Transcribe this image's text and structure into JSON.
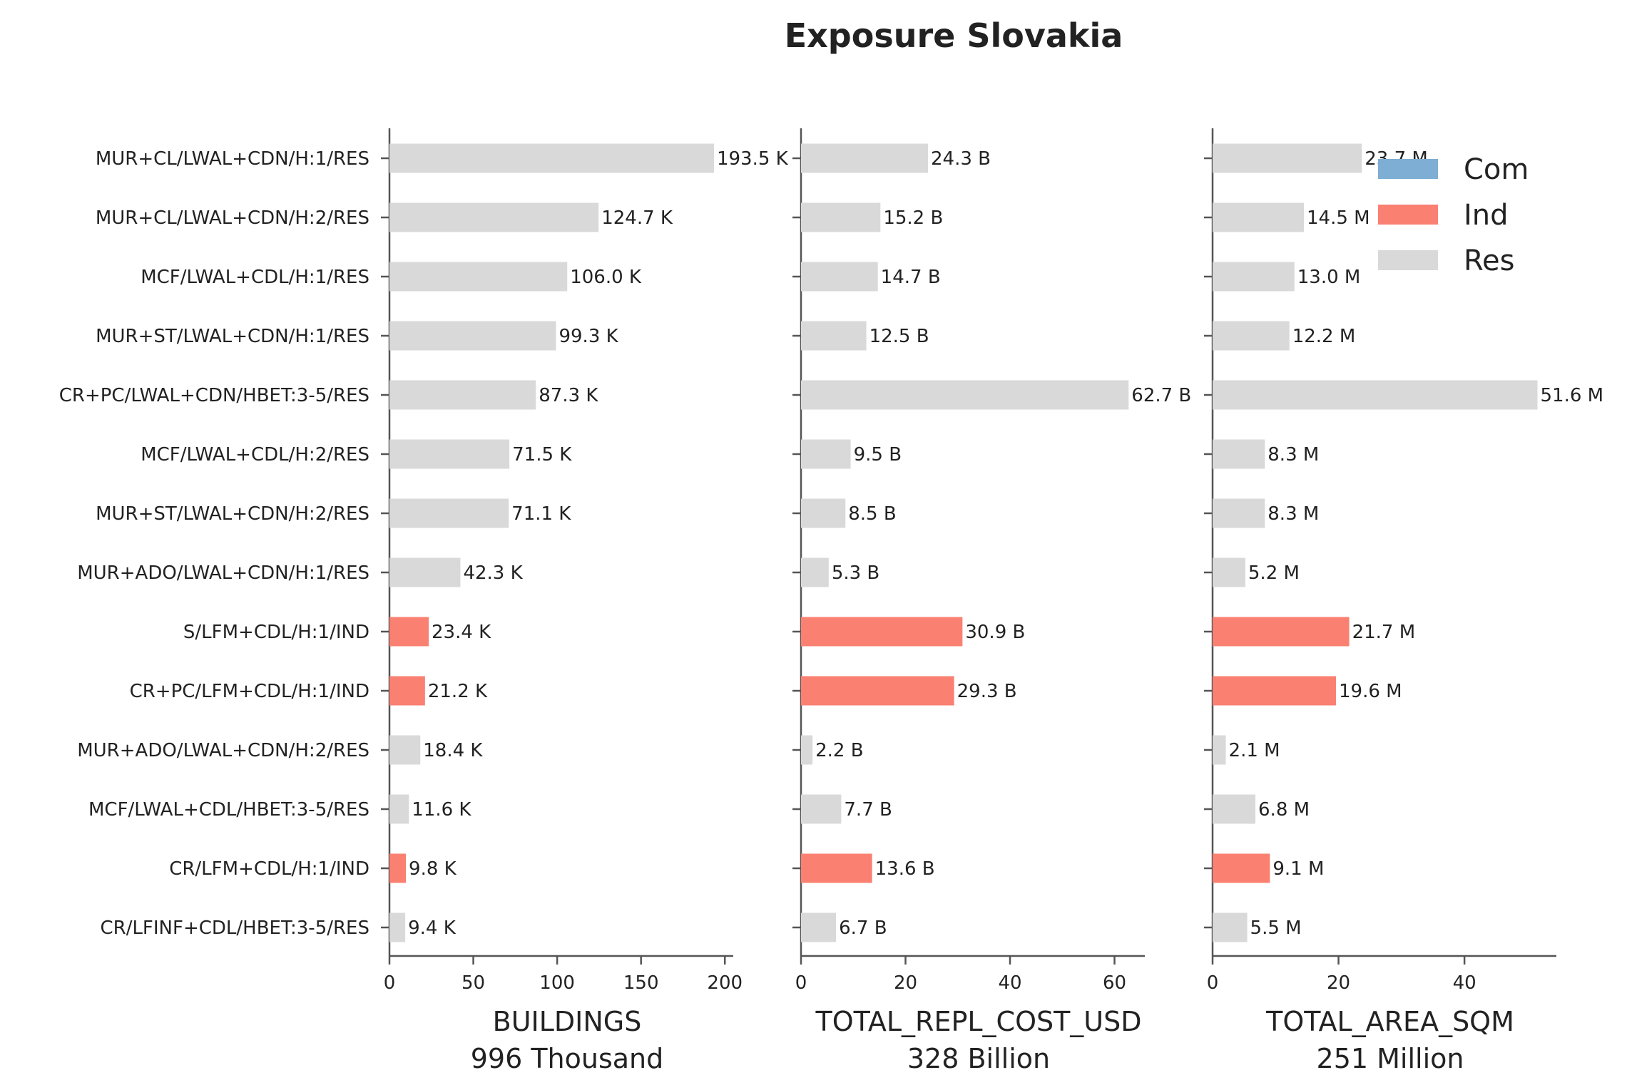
{
  "colors": {
    "Com": "#7eaed3",
    "Ind": "#fa8072",
    "Res": "#d9d9d9"
  },
  "chart_data": {
    "type": "bar",
    "orientation": "horizontal",
    "title": "Exposure Slovakia",
    "categories": [
      "MUR+CL/LWAL+CDN/H:1/RES",
      "MUR+CL/LWAL+CDN/H:2/RES",
      "MCF/LWAL+CDL/H:1/RES",
      "MUR+ST/LWAL+CDN/H:1/RES",
      "CR+PC/LWAL+CDN/HBET:3-5/RES",
      "MCF/LWAL+CDL/H:2/RES",
      "MUR+ST/LWAL+CDN/H:2/RES",
      "MUR+ADO/LWAL+CDN/H:1/RES",
      "S/LFM+CDL/H:1/IND",
      "CR+PC/LFM+CDL/H:1/IND",
      "MUR+ADO/LWAL+CDN/H:2/RES",
      "MCF/LWAL+CDL/HBET:3-5/RES",
      "CR/LFM+CDL/H:1/IND",
      "CR/LFINF+CDL/HBET:3-5/RES"
    ],
    "occupancy": [
      "Res",
      "Res",
      "Res",
      "Res",
      "Res",
      "Res",
      "Res",
      "Res",
      "Ind",
      "Ind",
      "Res",
      "Res",
      "Ind",
      "Res"
    ],
    "legend": {
      "position": "top-right",
      "entries": [
        "Com",
        "Ind",
        "Res"
      ]
    },
    "panels": [
      {
        "xlabel": "BUILDINGS",
        "total": "996 Thousand",
        "xlim": [
          0,
          205
        ],
        "xticks": [
          0,
          50,
          100,
          150,
          200
        ],
        "values": [
          193.5,
          124.7,
          106.0,
          99.3,
          87.3,
          71.5,
          71.1,
          42.3,
          23.4,
          21.2,
          18.4,
          11.6,
          9.8,
          9.4
        ],
        "value_labels": [
          "193.5 K",
          "124.7 K",
          "106.0 K",
          "99.3 K",
          "87.3 K",
          "71.5 K",
          "71.1 K",
          "42.3 K",
          "23.4 K",
          "21.2 K",
          "18.4 K",
          "11.6 K",
          "9.8 K",
          "9.4 K"
        ]
      },
      {
        "xlabel": "TOTAL_REPL_COST_USD",
        "total": "328 Billion",
        "xlim": [
          0,
          65.8
        ],
        "xticks": [
          0,
          20,
          40,
          60
        ],
        "values": [
          24.3,
          15.2,
          14.7,
          12.5,
          62.7,
          9.5,
          8.5,
          5.3,
          30.9,
          29.3,
          2.2,
          7.7,
          13.6,
          6.7
        ],
        "value_labels": [
          "24.3 B",
          "15.2 B",
          "14.7 B",
          "12.5 B",
          "62.7 B",
          "9.5 B",
          "8.5 B",
          "5.3 B",
          "30.9 B",
          "29.3 B",
          "2.2 B",
          "7.7 B",
          "13.6 B",
          "6.7 B"
        ]
      },
      {
        "xlabel": "TOTAL_AREA_SQM",
        "total": "251 Million",
        "xlim": [
          0,
          54.6
        ],
        "xticks": [
          0,
          20,
          40
        ],
        "values": [
          23.7,
          14.5,
          13.0,
          12.2,
          51.6,
          8.3,
          8.3,
          5.2,
          21.7,
          19.6,
          2.1,
          6.8,
          9.1,
          5.5
        ],
        "value_labels": [
          "23.7 M",
          "14.5 M",
          "13.0 M",
          "12.2 M",
          "51.6 M",
          "8.3 M",
          "8.3 M",
          "5.2 M",
          "21.7 M",
          "19.6 M",
          "2.1 M",
          "6.8 M",
          "9.1 M",
          "5.5 M"
        ]
      }
    ]
  }
}
